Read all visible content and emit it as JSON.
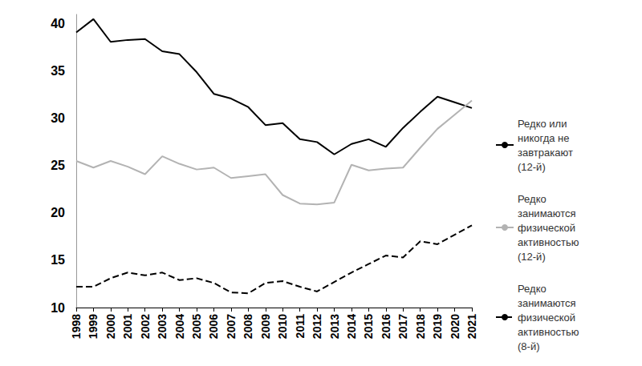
{
  "chart_data": {
    "type": "line",
    "categories": [
      "1998",
      "1999",
      "2000",
      "2001",
      "2002",
      "2003",
      "2004",
      "2005",
      "2006",
      "2007",
      "2008",
      "2009",
      "2010",
      "2011",
      "2012",
      "2013",
      "2014",
      "2015",
      "2016",
      "2017",
      "2018",
      "2019",
      "2020",
      "2021"
    ],
    "series": [
      {
        "name": "Редко или никогда не завтракают (12-й)",
        "color": "#000000",
        "line_style": "solid",
        "values": [
          39.1,
          40.5,
          38.1,
          38.3,
          38.4,
          37.1,
          36.8,
          34.9,
          32.6,
          32.1,
          31.2,
          29.3,
          29.5,
          27.8,
          27.5,
          26.2,
          27.3,
          27.8,
          27.0,
          29.0,
          30.7,
          32.3,
          31.7,
          31.1
        ]
      },
      {
        "name": "Редко занимаются физической активностью (12-й)",
        "color": "#b3b3b3",
        "line_style": "solid",
        "values": [
          25.5,
          24.8,
          25.5,
          24.9,
          24.1,
          26.0,
          25.2,
          24.6,
          24.8,
          23.7,
          23.9,
          24.1,
          21.9,
          21.0,
          20.9,
          21.1,
          25.1,
          24.5,
          24.7,
          24.8,
          26.9,
          28.9,
          30.4,
          31.9
        ]
      },
      {
        "name": "Редко занимаются физической активностью (8-й)",
        "color": "#000000",
        "line_style": "dashed",
        "values": [
          12.2,
          12.2,
          13.1,
          13.7,
          13.4,
          13.7,
          12.9,
          13.1,
          12.6,
          11.6,
          11.5,
          12.6,
          12.8,
          12.2,
          11.7,
          12.7,
          13.7,
          14.6,
          15.5,
          15.3,
          17.0,
          16.7,
          17.7,
          18.7
        ]
      }
    ],
    "ylim": [
      10,
      41
    ],
    "yticks": [
      10,
      15,
      20,
      25,
      30,
      35,
      40
    ],
    "grid": false,
    "legend": "right"
  }
}
